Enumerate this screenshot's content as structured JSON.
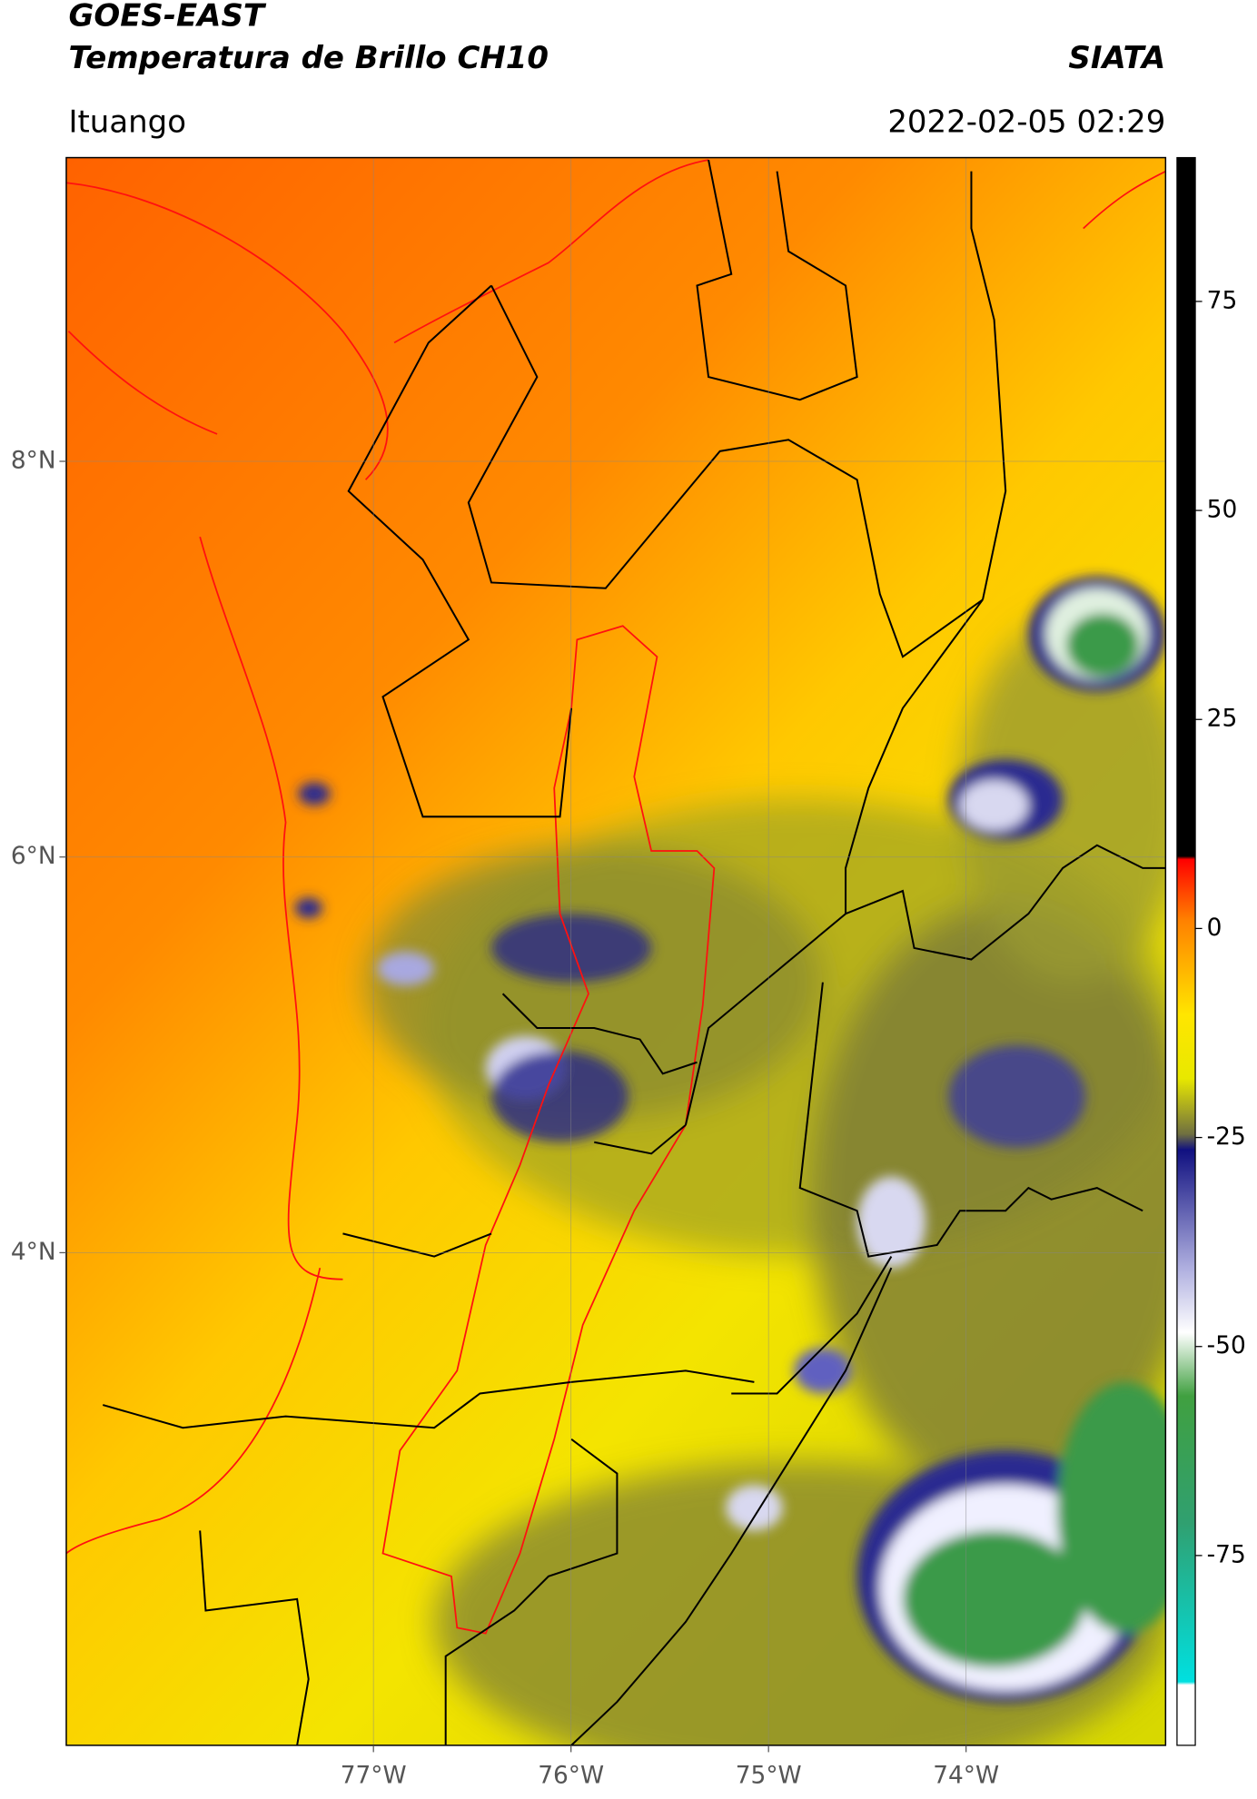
{
  "header": {
    "title": "GOES-EAST",
    "subtitle": "Temperatura de Brillo CH10",
    "source": "SIATA",
    "location": "Ituango",
    "datetime": "2022-02-05 02:29"
  },
  "map": {
    "xlim": [
      -78.555,
      -72.99
    ],
    "ylim": [
      1.51,
      9.535
    ],
    "xticks": [
      {
        "value": -77,
        "label": "77°W"
      },
      {
        "value": -76,
        "label": "76°W"
      },
      {
        "value": -75,
        "label": "75°W"
      },
      {
        "value": -74,
        "label": "74°W"
      }
    ],
    "yticks": [
      {
        "value": 8,
        "label": "8°N"
      },
      {
        "value": 6,
        "label": "6°N"
      },
      {
        "value": 4,
        "label": "4°N"
      }
    ],
    "grid": true
  },
  "colorbar": {
    "clim": [
      -97.7,
      92.2
    ],
    "ticks": [
      75,
      50,
      25,
      0,
      -25,
      -50,
      -75
    ]
  }
}
